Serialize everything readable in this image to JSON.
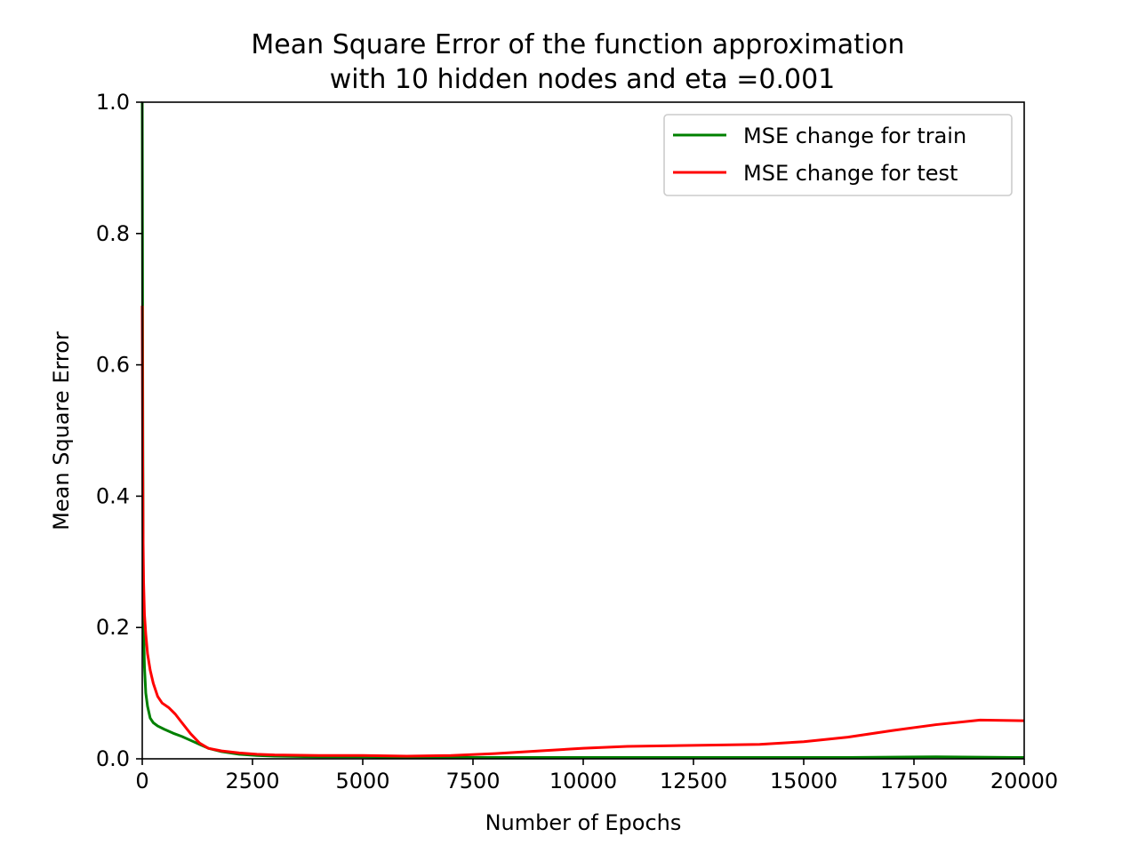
{
  "chart_data": {
    "type": "line",
    "title_line1": "Mean Square Error of the function approximation",
    "title_line2": "with 10 hidden nodes and eta =0.001",
    "xlabel": "Number of Epochs",
    "ylabel": "Mean Square Error",
    "xlim": [
      0,
      20000
    ],
    "ylim": [
      0.0,
      1.0
    ],
    "xticks": [
      0,
      2500,
      5000,
      7500,
      10000,
      12500,
      15000,
      17500,
      20000
    ],
    "xtick_labels": [
      "0",
      "2500",
      "5000",
      "7500",
      "10000",
      "12500",
      "15000",
      "17500",
      "20000"
    ],
    "yticks": [
      0.0,
      0.2,
      0.4,
      0.6,
      0.8,
      1.0
    ],
    "ytick_labels": [
      "0.0",
      "0.2",
      "0.4",
      "0.6",
      "0.8",
      "1.0"
    ],
    "grid": false,
    "legend_position": "top-right",
    "series": [
      {
        "name": "MSE change for train",
        "color": "#008000",
        "x": [
          0,
          10,
          20,
          30,
          50,
          80,
          120,
          180,
          250,
          350,
          500,
          700,
          900,
          1100,
          1300,
          1500,
          1800,
          2200,
          2600,
          3000,
          4000,
          5000,
          6000,
          8000,
          10000,
          12000,
          14000,
          16000,
          18000,
          20000
        ],
        "y": [
          1.0,
          0.6,
          0.3,
          0.2,
          0.14,
          0.1,
          0.08,
          0.062,
          0.055,
          0.05,
          0.045,
          0.039,
          0.034,
          0.028,
          0.022,
          0.016,
          0.011,
          0.007,
          0.005,
          0.004,
          0.003,
          0.003,
          0.002,
          0.002,
          0.002,
          0.002,
          0.002,
          0.002,
          0.003,
          0.002
        ]
      },
      {
        "name": "MSE change for test",
        "color": "#ff0000",
        "x": [
          0,
          10,
          20,
          30,
          50,
          80,
          120,
          180,
          250,
          350,
          450,
          600,
          750,
          900,
          1100,
          1300,
          1500,
          1800,
          2200,
          2600,
          3000,
          4000,
          5000,
          6000,
          7000,
          8000,
          9000,
          10000,
          11000,
          12000,
          13000,
          14000,
          15000,
          16000,
          17000,
          18000,
          19000,
          20000
        ],
        "y": [
          0.69,
          0.45,
          0.33,
          0.27,
          0.22,
          0.19,
          0.16,
          0.135,
          0.115,
          0.095,
          0.085,
          0.078,
          0.068,
          0.055,
          0.038,
          0.024,
          0.016,
          0.012,
          0.009,
          0.007,
          0.006,
          0.005,
          0.005,
          0.004,
          0.005,
          0.008,
          0.012,
          0.016,
          0.019,
          0.02,
          0.021,
          0.022,
          0.026,
          0.033,
          0.043,
          0.052,
          0.059,
          0.058
        ]
      }
    ]
  }
}
